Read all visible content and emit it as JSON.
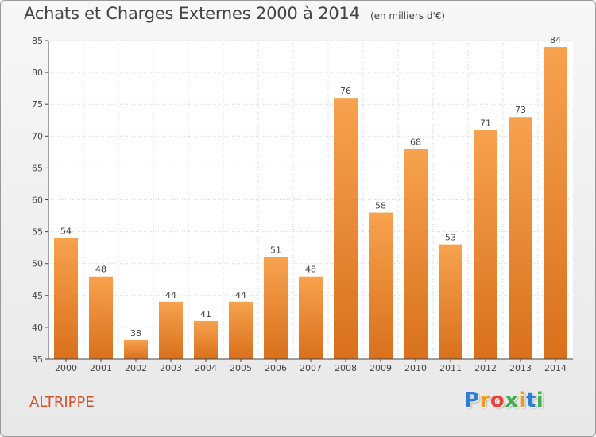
{
  "chart_data": {
    "type": "bar",
    "title": "Achats et Charges Externes 2000 à 2014",
    "subtitle": "(en milliers d'€)",
    "categories": [
      "2000",
      "2001",
      "2002",
      "2003",
      "2004",
      "2005",
      "2006",
      "2007",
      "2008",
      "2009",
      "2010",
      "2011",
      "2012",
      "2013",
      "2014"
    ],
    "values": [
      54,
      48,
      38,
      44,
      41,
      44,
      51,
      48,
      76,
      58,
      68,
      53,
      71,
      73,
      84
    ],
    "ylim": [
      35,
      85
    ],
    "yticks": [
      35,
      40,
      45,
      50,
      55,
      60,
      65,
      70,
      75,
      80,
      85
    ],
    "grid": true,
    "bar_color_top": "#f7a24e",
    "bar_color_bottom": "#d9701c"
  },
  "commune": "ALTRIPPE",
  "brand": {
    "letters": [
      "P",
      "r",
      "o",
      "x",
      "i",
      "t",
      "i"
    ],
    "colors": [
      "#2e7fd3",
      "#f39a1e",
      "#e7413c",
      "#3fb04a",
      "#f39a1e",
      "#2e7fd3",
      "#3fb04a"
    ]
  }
}
